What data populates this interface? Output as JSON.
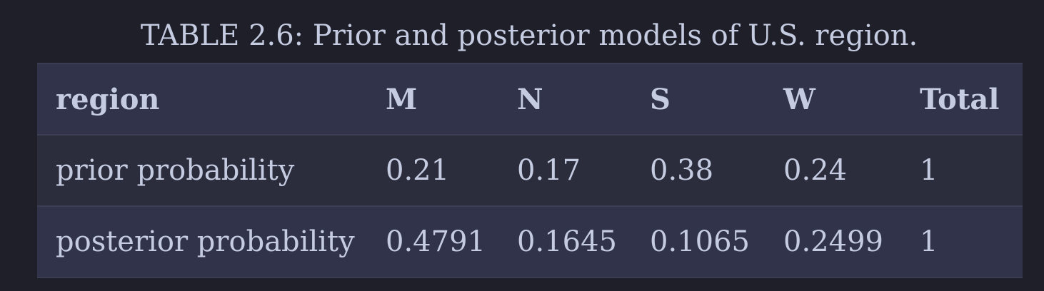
{
  "caption": "TABLE 2.6: Prior and posterior models of U.S. region.",
  "table": {
    "headers": [
      "region",
      "M",
      "N",
      "S",
      "W",
      "Total"
    ],
    "rows": [
      [
        "prior probability",
        "0.21",
        "0.17",
        "0.38",
        "0.24",
        "1"
      ],
      [
        "posterior probability",
        "0.4791",
        "0.1645",
        "0.1065",
        "0.2499",
        "1"
      ]
    ]
  },
  "colors": {
    "page_background": "#1e1f29",
    "header_background": "#31334a",
    "row_background_odd": "#2b2d3c",
    "row_background_even": "#31334a",
    "text": "#c5cbe0"
  }
}
